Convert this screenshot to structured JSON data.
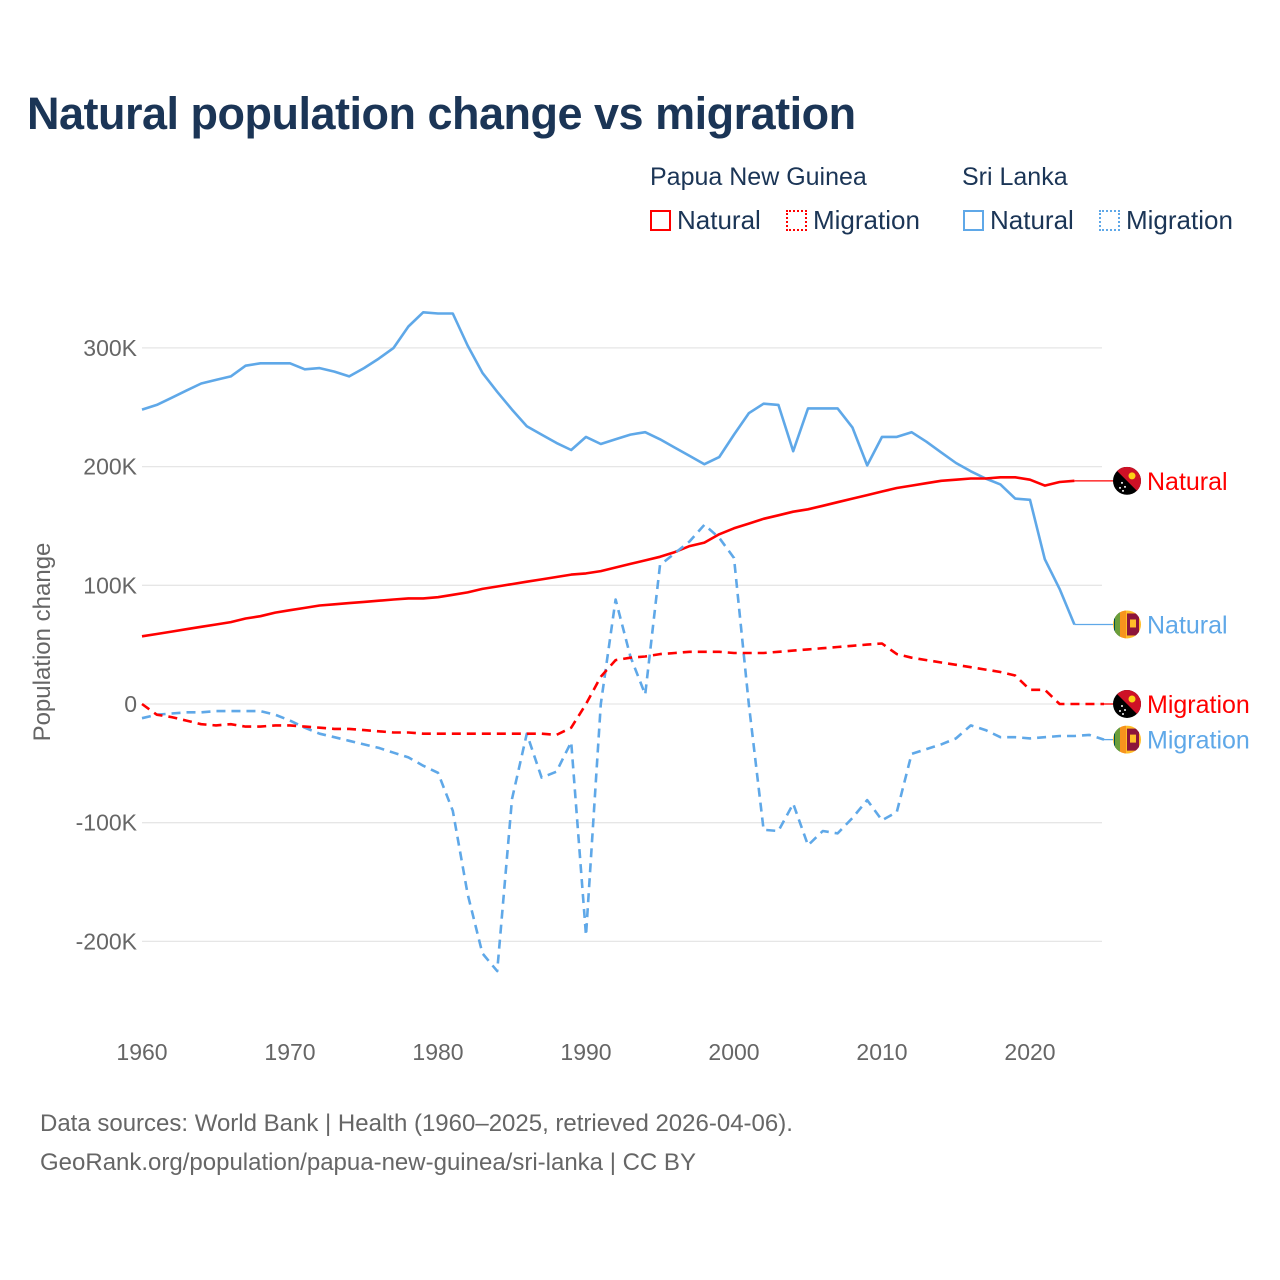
{
  "title": "Natural population change vs migration",
  "legend": {
    "groups": [
      {
        "label": "Papua New Guinea",
        "items": [
          {
            "label": "Natural",
            "style": "solid"
          },
          {
            "label": "Migration",
            "style": "dotted"
          }
        ],
        "color": "#ff0000"
      },
      {
        "label": "Sri Lanka",
        "items": [
          {
            "label": "Natural",
            "style": "solid"
          },
          {
            "label": "Migration",
            "style": "dotted"
          }
        ],
        "color": "#5fa8e8"
      }
    ]
  },
  "footer": {
    "line1": "Data sources: World Bank | Health (1960–2025, retrieved 2026-04-06).",
    "line2": "GeoRank.org/population/papua-new-guinea/sri-lanka | CC BY"
  },
  "chart_data": {
    "type": "line",
    "title": "Natural population change vs migration",
    "xlabel": "",
    "ylabel": "Population change",
    "xlim": [
      1960,
      2025
    ],
    "ylim": [
      -250000,
      330000
    ],
    "xticks": [
      {
        "v": 1960,
        "label": "1960"
      },
      {
        "v": 1970,
        "label": "1970"
      },
      {
        "v": 1980,
        "label": "1980"
      },
      {
        "v": 1990,
        "label": "1990"
      },
      {
        "v": 2000,
        "label": "2000"
      },
      {
        "v": 2010,
        "label": "2010"
      },
      {
        "v": 2020,
        "label": "2020"
      }
    ],
    "yticks": [
      {
        "v": 300000,
        "label": "300K"
      },
      {
        "v": 200000,
        "label": "200K"
      },
      {
        "v": 100000,
        "label": "100K"
      },
      {
        "v": 0,
        "label": "0"
      },
      {
        "v": -100000,
        "label": "-100K"
      },
      {
        "v": -200000,
        "label": "-200K"
      }
    ],
    "grid": true,
    "series": [
      {
        "name": "Papua New Guinea Natural",
        "end_label": "Natural",
        "country": "png",
        "color": "#ff0000",
        "dash": false,
        "start": 1960,
        "values": [
          57,
          59,
          61,
          63,
          65,
          67,
          69,
          72,
          74,
          77,
          79,
          81,
          83,
          84,
          85,
          86,
          87,
          88,
          89,
          89,
          90,
          92,
          94,
          97,
          99,
          101,
          103,
          105,
          107,
          109,
          110,
          112,
          115,
          118,
          121,
          124,
          128,
          133,
          136,
          143,
          148,
          152,
          156,
          159,
          162,
          164,
          167,
          170,
          173,
          176,
          179,
          182,
          184,
          186,
          188,
          189,
          190,
          190,
          191,
          191,
          189,
          184,
          187,
          188
        ],
        "extend_to": 2025
      },
      {
        "name": "Sri Lanka Natural",
        "end_label": "Natural",
        "country": "lka",
        "color": "#5fa8e8",
        "dash": false,
        "start": 1960,
        "values": [
          248,
          252,
          258,
          264,
          270,
          273,
          276,
          285,
          287,
          287,
          287,
          282,
          283,
          280,
          276,
          283,
          291,
          300,
          318,
          330,
          329,
          329,
          302,
          279,
          263,
          248,
          234,
          227,
          220,
          214,
          225,
          219,
          223,
          227,
          229,
          223,
          216,
          209,
          202,
          208,
          227,
          245,
          253,
          252,
          213,
          249,
          249,
          249,
          233,
          201,
          225,
          225,
          229,
          221,
          212,
          203,
          196,
          190,
          185,
          173,
          172,
          122,
          97,
          67
        ],
        "extend_to": 2025
      },
      {
        "name": "Papua New Guinea Migration",
        "end_label": "Migration",
        "country": "png",
        "color": "#ff0000",
        "dash": true,
        "start": 1960,
        "values": [
          0,
          -9,
          -11,
          -14,
          -17,
          -18,
          -17,
          -19,
          -19,
          -18,
          -18,
          -19,
          -20,
          -21,
          -21,
          -22,
          -23,
          -24,
          -24,
          -25,
          -25,
          -25,
          -25,
          -25,
          -25,
          -25,
          -25,
          -25,
          -26,
          -20,
          0,
          23,
          37,
          39,
          40,
          42,
          43,
          44,
          44,
          44,
          43,
          43,
          43,
          44,
          45,
          46,
          47,
          48,
          49,
          50,
          51,
          42,
          39,
          37,
          35,
          33,
          31,
          29,
          27,
          24,
          12,
          12,
          0,
          0,
          0,
          0
        ]
      },
      {
        "name": "Sri Lanka Migration",
        "end_label": "Migration",
        "country": "lka",
        "color": "#5fa8e8",
        "dash": true,
        "start": 1960,
        "values": [
          -12,
          -9,
          -8,
          -7,
          -7,
          -6,
          -6,
          -6,
          -6,
          -9,
          -14,
          -20,
          -25,
          -28,
          -31,
          -34,
          -37,
          -41,
          -45,
          -52,
          -58,
          -90,
          -160,
          -210,
          -225,
          -80,
          -25,
          -62,
          -57,
          -32,
          -195,
          0,
          88,
          40,
          8,
          117,
          127,
          137,
          151,
          140,
          123,
          0,
          -106,
          -107,
          -84,
          -119,
          -107,
          -109,
          -96,
          -81,
          -98,
          -91,
          -42,
          -38,
          -34,
          -29,
          -18,
          -22,
          -28,
          -28,
          -29,
          -28,
          -27,
          -27,
          -26,
          -30
        ]
      }
    ],
    "value_unit": "thousands",
    "legend_position": "top-right"
  }
}
